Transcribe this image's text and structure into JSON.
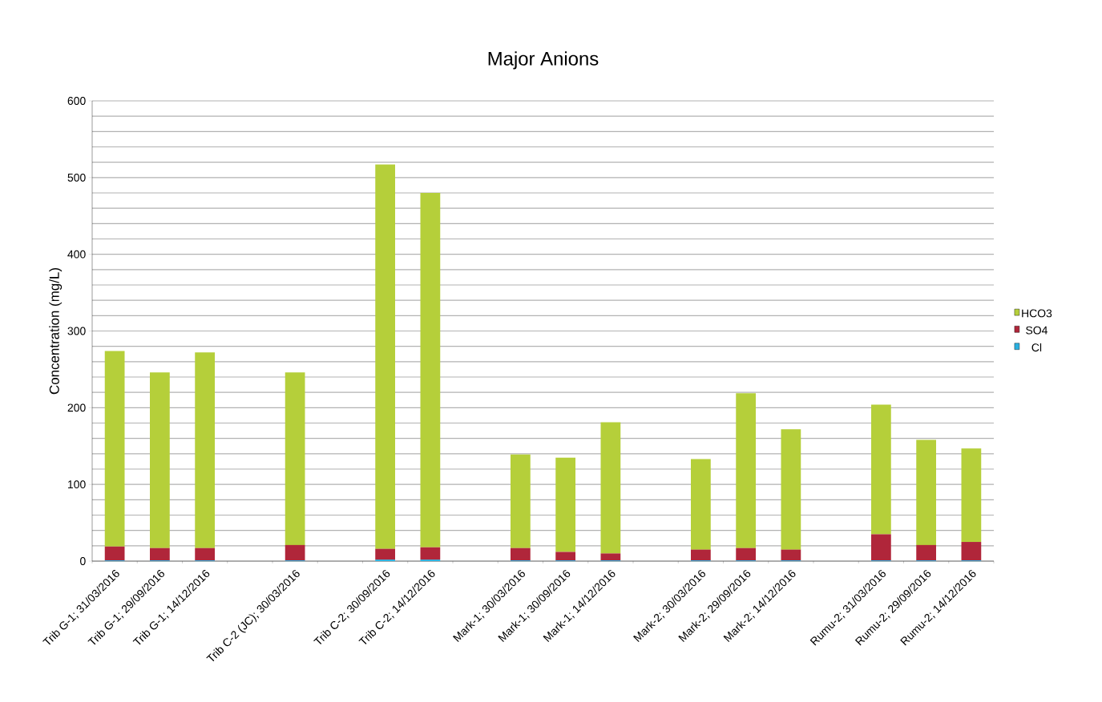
{
  "chart_data": {
    "type": "bar",
    "stacked": true,
    "title": "Major Anions",
    "ylabel": "Concentration (mg/L)",
    "categories": [
      "Trib G-1; 31/03/2016",
      "Trib G-1; 29/09/2016",
      "Trib G-1; 14/12/2016",
      null,
      "Trib C-2 (JC); 30/03/2016",
      null,
      "Trib C-2; 30/09/2016",
      "Trib C-2; 14/12/2016",
      null,
      "Mark-1; 30/03/2016",
      "Mark-1; 30/09/2016",
      "Mark-1; 14/12/2016",
      null,
      "Mark-2; 30/03/2016",
      "Mark-2; 29/09/2016",
      "Mark-2; 14/12/2016",
      null,
      "Rumu-2; 31/03/2016",
      "Rumu-2; 29/09/2016",
      "Rumu-2; 14/12/2016"
    ],
    "series": [
      {
        "name": "Cl",
        "color": "#2ab0e0",
        "values": [
          1,
          1,
          1,
          null,
          1,
          null,
          2,
          2,
          null,
          1,
          1,
          1,
          null,
          1,
          1,
          1,
          null,
          1,
          1,
          1
        ]
      },
      {
        "name": "SO4",
        "color": "#b0263a",
        "values": [
          18,
          16,
          16,
          null,
          20,
          null,
          14,
          16,
          null,
          16,
          11,
          9,
          null,
          14,
          16,
          14,
          null,
          34,
          20,
          24
        ]
      },
      {
        "name": "HCO3",
        "color": "#b5cf3a",
        "values": [
          255,
          229,
          255,
          null,
          225,
          null,
          501,
          462,
          null,
          122,
          123,
          171,
          null,
          118,
          202,
          157,
          null,
          169,
          137,
          122
        ]
      }
    ],
    "ylim": [
      0,
      600
    ],
    "yticks": [
      0,
      100,
      200,
      300,
      400,
      500,
      600
    ],
    "grid": "y",
    "legend": "right"
  }
}
